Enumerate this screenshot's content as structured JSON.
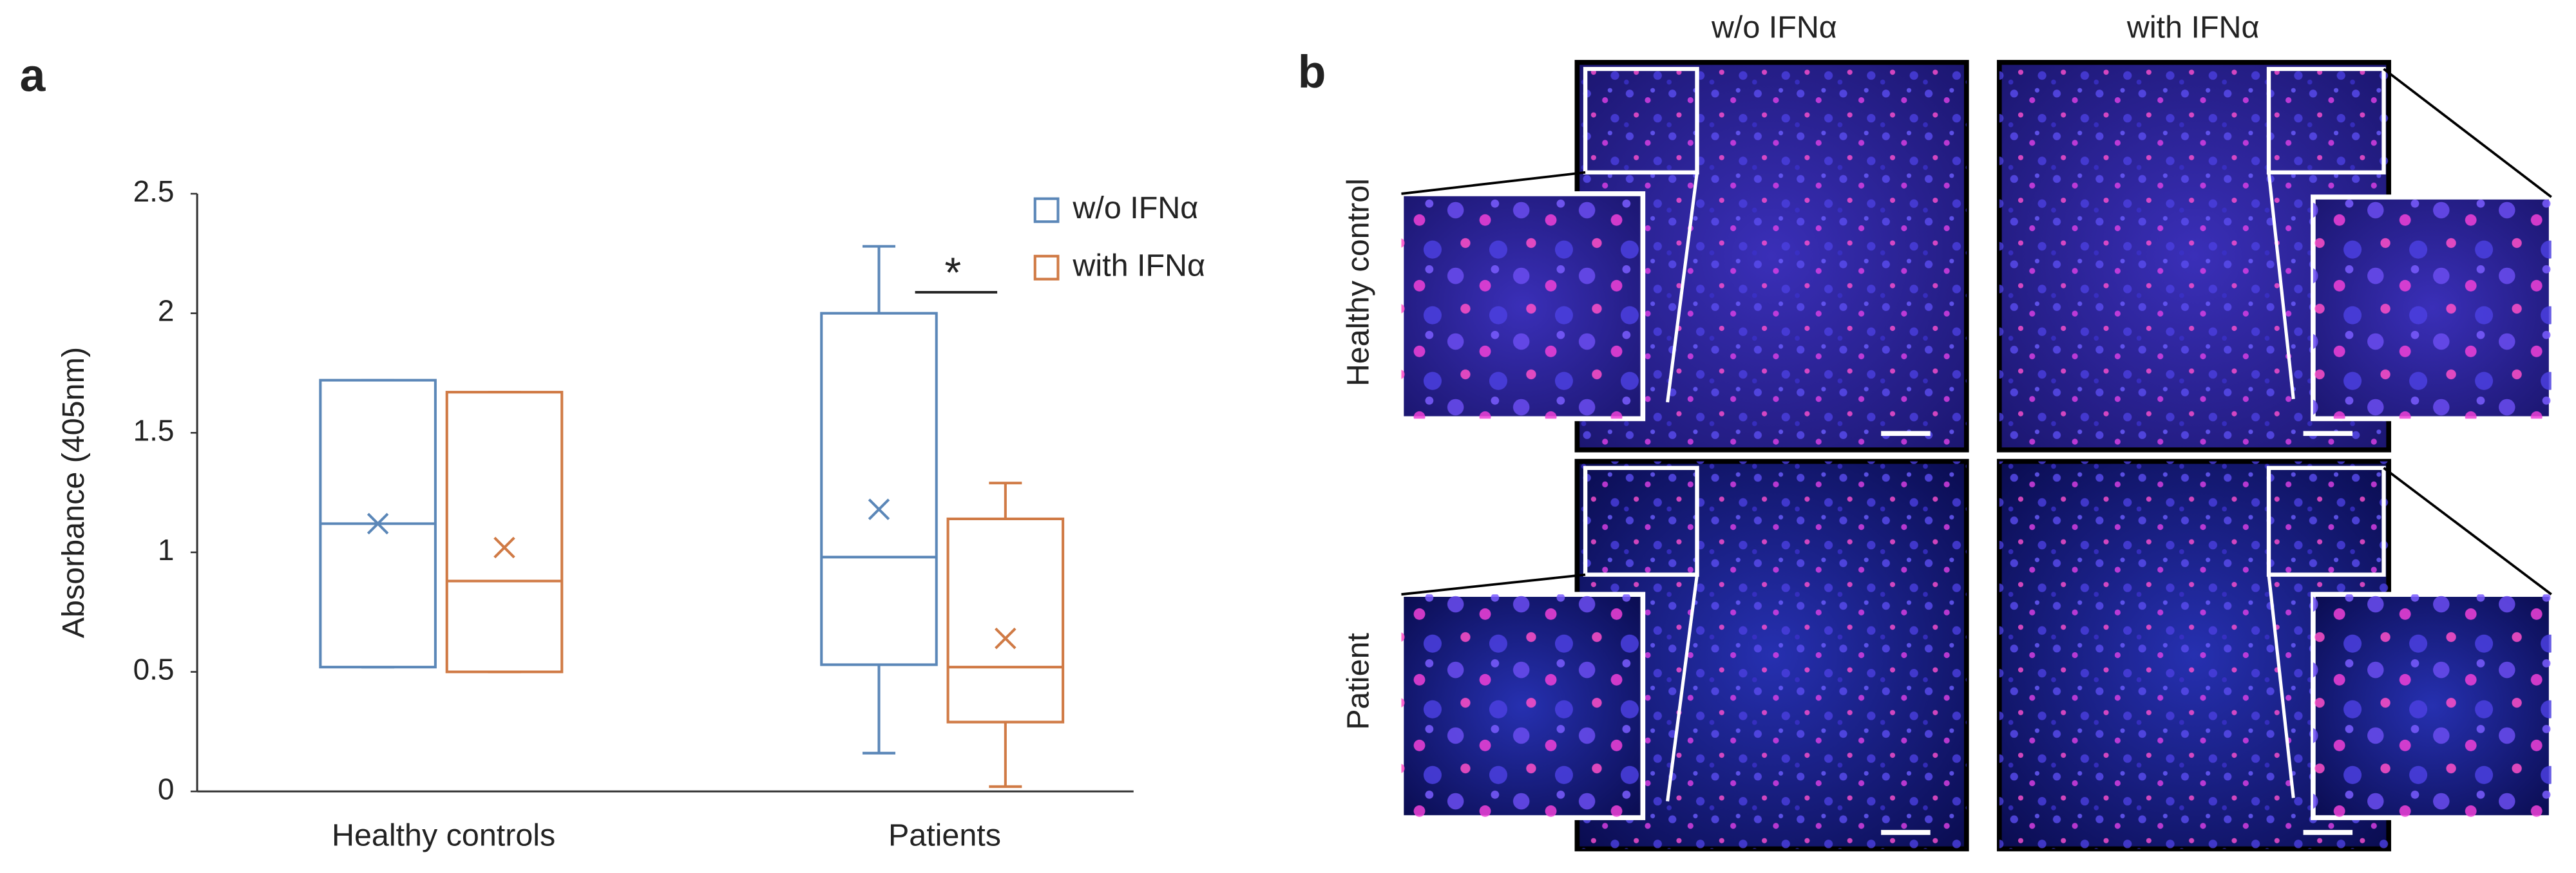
{
  "chart_data": {
    "type": "box",
    "panel_label": "a",
    "ylabel": "Absorbance (405nm)",
    "categories": [
      "Healthy controls",
      "Patients"
    ],
    "series": [
      {
        "name": "w/o IFNα",
        "color": "#5b87b8",
        "min": [
          0.52,
          0.16
        ],
        "q1": [
          0.52,
          0.53
        ],
        "median": [
          1.12,
          0.98
        ],
        "q3": [
          1.72,
          2.0
        ],
        "max": [
          1.72,
          2.28
        ],
        "mean": [
          1.12,
          1.18
        ]
      },
      {
        "name": "with IFNα",
        "color": "#d07a45",
        "min": [
          0.5,
          0.02
        ],
        "q1": [
          0.5,
          0.29
        ],
        "median": [
          0.88,
          0.52
        ],
        "q3": [
          1.67,
          1.14
        ],
        "max": [
          1.67,
          1.29
        ],
        "mean": [
          1.02,
          0.64
        ]
      }
    ],
    "ylim": [
      0,
      2.5
    ],
    "yticks": [
      0,
      0.5,
      1,
      1.5,
      2,
      2.5
    ],
    "legend": "upper right",
    "annotations": [
      {
        "text": "*"
      }
    ]
  },
  "figure_b": {
    "panel_label": "b",
    "columns": [
      "w/o IFNα",
      "with IFNα"
    ],
    "rows": [
      "Healthy control",
      "Patient"
    ]
  }
}
